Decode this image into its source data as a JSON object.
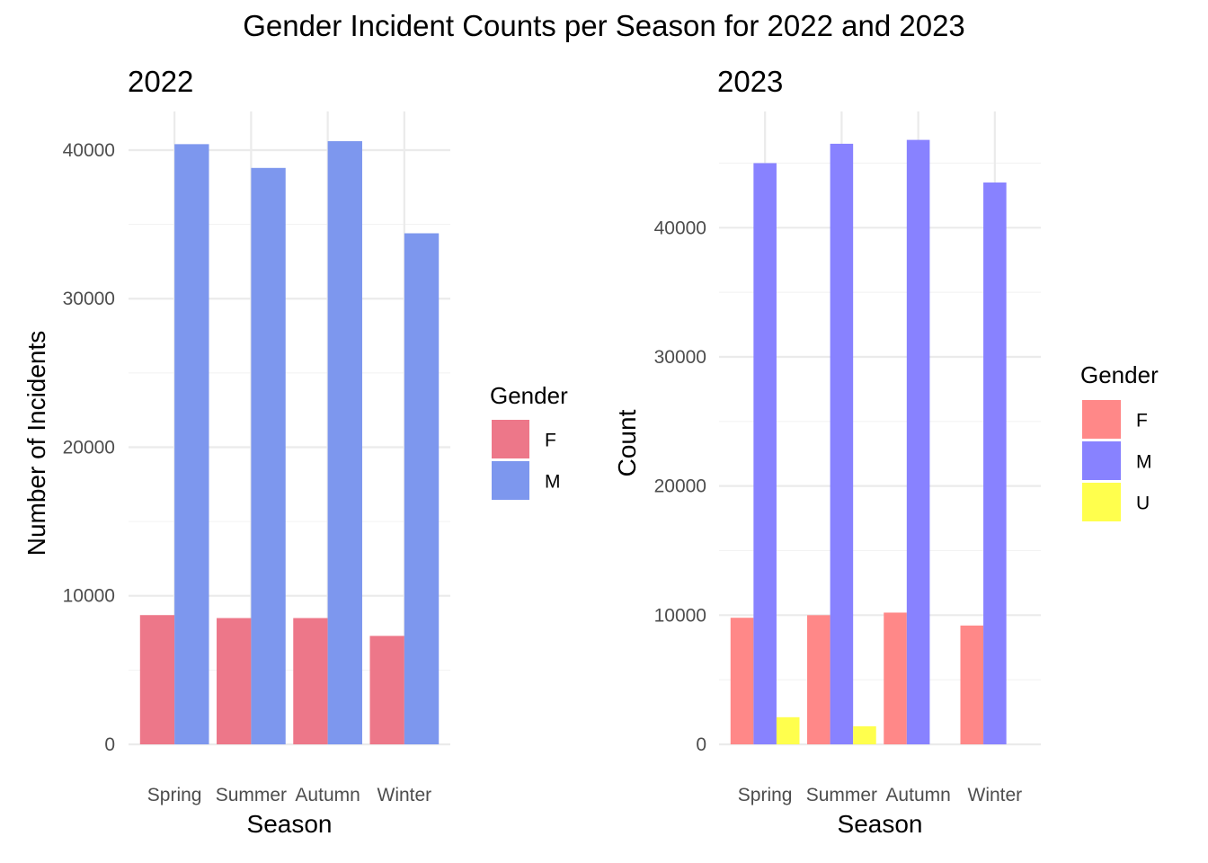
{
  "figure": {
    "title": "Gender Incident Counts per Season for 2022 and 2023"
  },
  "chart_data": [
    {
      "type": "bar",
      "title": "2022",
      "xlabel": "Season",
      "ylabel": "Number of Incidents",
      "categories": [
        "Spring",
        "Summer",
        "Autumn",
        "Winter"
      ],
      "yticks": [
        0,
        10000,
        20000,
        30000,
        40000
      ],
      "ylim": [
        0,
        42600
      ],
      "grid": true,
      "legend": {
        "title": "Gender",
        "position": "right"
      },
      "series": [
        {
          "name": "F",
          "color": "#ED7789",
          "values": [
            8700,
            8500,
            8500,
            7300
          ]
        },
        {
          "name": "M",
          "color": "#7D97EE",
          "values": [
            40400,
            38800,
            40600,
            34400
          ]
        }
      ]
    },
    {
      "type": "bar",
      "title": "2023",
      "xlabel": "Season",
      "ylabel": "Count",
      "categories": [
        "Spring",
        "Summer",
        "Autumn",
        "Winter"
      ],
      "yticks": [
        0,
        10000,
        20000,
        30000,
        40000
      ],
      "ylim": [
        0,
        49000
      ],
      "grid": true,
      "legend": {
        "title": "Gender",
        "position": "right"
      },
      "series": [
        {
          "name": "F",
          "color": "#FF8888",
          "values": [
            9800,
            10000,
            10200,
            9200
          ]
        },
        {
          "name": "M",
          "color": "#8882FF",
          "values": [
            45000,
            46500,
            46800,
            43500
          ]
        },
        {
          "name": "U",
          "color": "#FFFF4D",
          "values": [
            2100,
            1400,
            null,
            null
          ]
        }
      ]
    }
  ]
}
